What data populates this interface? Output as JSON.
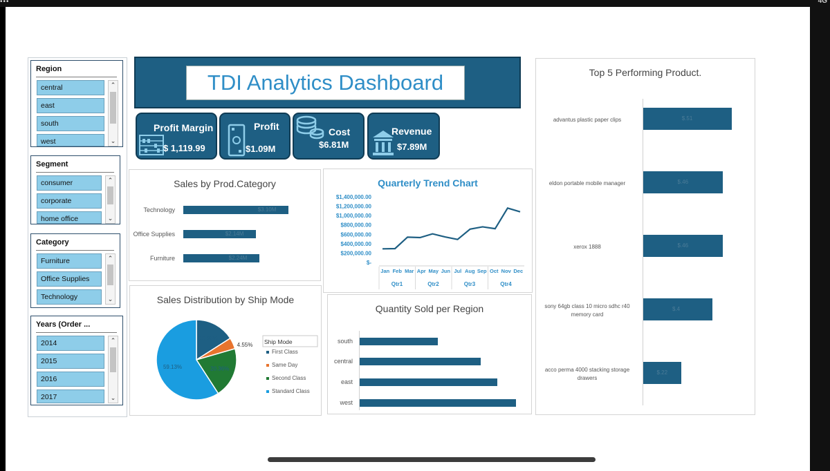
{
  "dashboard_title": "TDI Analytics Dashboard",
  "slicers": {
    "region": {
      "title": "Region",
      "items": [
        "central",
        "east",
        "south",
        "west"
      ]
    },
    "segment": {
      "title": "Segment",
      "items": [
        "consumer",
        "corporate",
        "home office"
      ]
    },
    "category": {
      "title": "Category",
      "items": [
        "Furniture",
        "Office Supplies",
        "Technology"
      ]
    },
    "years": {
      "title": "Years (Order ...",
      "items": [
        "2014",
        "2015",
        "2016",
        "2017"
      ]
    }
  },
  "kpis": {
    "profit_margin": {
      "label": "Profit Margin",
      "value": "$ 1,119.99",
      "icon": "abacus-icon"
    },
    "profit": {
      "label": "Profit",
      "value": "$1.09M",
      "icon": "cash-icon"
    },
    "cost": {
      "label": "Cost",
      "value": "$6.81M",
      "icon": "coins-icon"
    },
    "revenue": {
      "label": "Revenue",
      "value": "$7.89M",
      "icon": "bank-icon"
    }
  },
  "colors": {
    "navy": "#1e5f83",
    "first_class": "#1e5f83",
    "same_day": "#e8742e",
    "second_class": "#217a34",
    "standard_class": "#1a9de0"
  },
  "charts": {
    "sales_by_category": {
      "type": "bar",
      "title": "Sales by Prod.Category",
      "categories": [
        "Technology",
        "Office Supplies",
        "Furniture"
      ],
      "values": [
        3.1,
        2.14,
        2.24
      ],
      "data_labels": [
        "$3.10M",
        "$2.14M",
        "$2.24M"
      ]
    },
    "quarterly_trend": {
      "type": "line",
      "title": "Quarterly Trend Chart",
      "months": [
        "Jan",
        "Feb",
        "Mar",
        "Apr",
        "May",
        "Jun",
        "Jul",
        "Aug",
        "Sep",
        "Oct",
        "Nov",
        "Dec"
      ],
      "quarters": [
        "Qtr1",
        "Qtr2",
        "Qtr3",
        "Qtr4"
      ],
      "values": [
        290000,
        295000,
        540000,
        530000,
        610000,
        545000,
        490000,
        710000,
        760000,
        720000,
        1160000,
        1080000
      ],
      "y_ticks": [
        "$1,400,000.00",
        "$1,200,000.00",
        "$1,000,000.00",
        "$800,000.00",
        "$600,000.00",
        "$400,000.00",
        "$200,000.00",
        "$-"
      ],
      "ylim": [
        0,
        1400000
      ]
    },
    "ship_mode": {
      "type": "pie",
      "title": "Sales Distribution by Ship Mode",
      "legend_title": "Ship Mode",
      "slices": [
        {
          "name": "First Class",
          "value": 15.96,
          "label": "15.96%"
        },
        {
          "name": "Same Day",
          "value": 4.55,
          "label": "4.55%"
        },
        {
          "name": "Second Class",
          "value": 20.36,
          "label": "20.36%"
        },
        {
          "name": "Standard Class",
          "value": 59.13,
          "label": "59.13%"
        }
      ]
    },
    "qty_by_region": {
      "type": "bar",
      "title": "Quantity Sold per Region",
      "categories": [
        "south",
        "central",
        "east",
        "west"
      ],
      "values": [
        8000,
        12400,
        14100,
        16000
      ],
      "xlim": [
        0,
        17000
      ]
    },
    "top5_products": {
      "type": "bar",
      "title": "Top 5 Performing Product.",
      "categories": [
        "advantus plastic paper clips",
        "eldon portable mobile manager",
        "xerox 1888",
        "sony 64gb class 10 micro sdhc r40 memory card",
        "acco perma 4000 stacking storage drawers"
      ],
      "values": [
        0.51,
        0.46,
        0.46,
        0.4,
        0.22
      ],
      "data_labels": [
        "$.51",
        "$.46",
        "$.46",
        "$.4",
        "$.22"
      ],
      "xlim": [
        0,
        0.8
      ]
    }
  }
}
